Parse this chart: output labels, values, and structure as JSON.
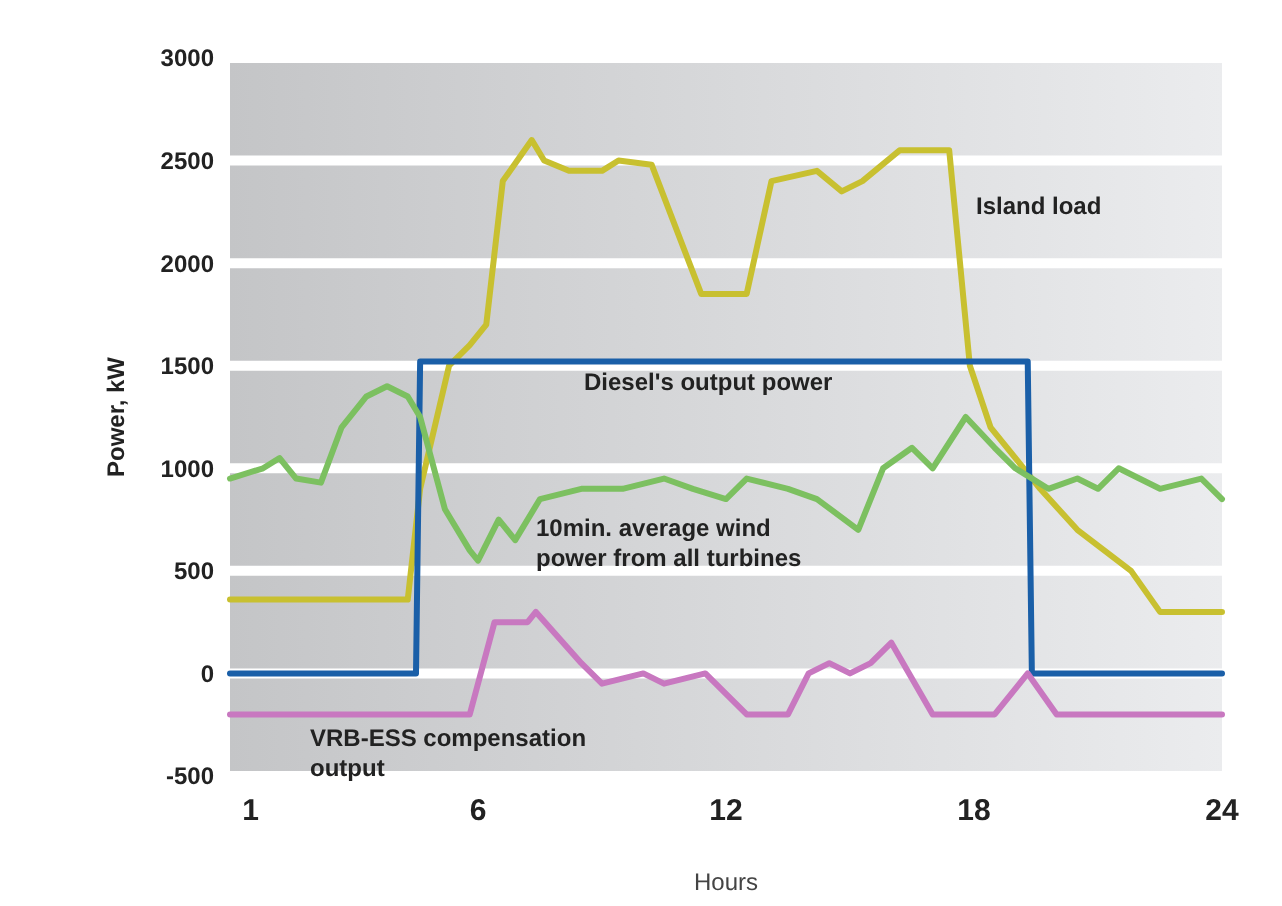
{
  "chart_data": {
    "type": "line",
    "xlabel": "Hours",
    "ylabel": "Power, kW",
    "xlim": [
      0,
      24
    ],
    "xticks": [
      {
        "value": 0.5,
        "label": "1"
      },
      6,
      12,
      18,
      24
    ],
    "ylim": [
      -500,
      3000
    ],
    "yticks": [
      {
        "value": -500,
        "label": "-500"
      },
      0,
      500,
      1000,
      1500,
      2000,
      2500,
      3000
    ],
    "grid": "y",
    "series": [
      {
        "name": "Island load",
        "color": "#c8c030",
        "x": [
          0,
          4.3,
          4.6,
          5.3,
          5.8,
          6.2,
          6.6,
          7.3,
          7.6,
          8.2,
          9,
          9.4,
          10.2,
          11.4,
          12.5,
          13.1,
          14.2,
          14.8,
          15.3,
          16.2,
          17.4,
          17.9,
          18.4,
          19.6,
          20.5,
          21.8,
          22.5,
          24
        ],
        "values": [
          360,
          360,
          900,
          1500,
          1600,
          1700,
          2400,
          2600,
          2500,
          2450,
          2450,
          2500,
          2480,
          1850,
          1850,
          2400,
          2450,
          2350,
          2400,
          2550,
          2550,
          1500,
          1200,
          900,
          700,
          500,
          300,
          300
        ]
      },
      {
        "name": "Diesel's output power",
        "color": "#1a5fa8",
        "x": [
          0,
          4.5,
          4.6,
          19.3,
          19.4,
          24
        ],
        "values": [
          0,
          0,
          1520,
          1520,
          0,
          0
        ]
      },
      {
        "name": "10min. average wind power from all turbines",
        "color": "#7cc060",
        "x": [
          0,
          0.8,
          1.2,
          1.6,
          2.2,
          2.7,
          3.3,
          3.8,
          4.3,
          4.6,
          5.2,
          5.8,
          6,
          6.5,
          6.9,
          7.5,
          8.5,
          9.5,
          10.5,
          11.2,
          12,
          12.5,
          13.5,
          14.2,
          15.2,
          15.8,
          16.5,
          17,
          17.8,
          18.5,
          19,
          19.8,
          20.5,
          21,
          21.5,
          22.5,
          23.5,
          24
        ],
        "values": [
          950,
          1000,
          1050,
          950,
          930,
          1200,
          1350,
          1400,
          1350,
          1250,
          800,
          600,
          550,
          750,
          650,
          850,
          900,
          900,
          950,
          900,
          850,
          950,
          900,
          850,
          700,
          1000,
          1100,
          1000,
          1250,
          1100,
          1000,
          900,
          950,
          900,
          1000,
          900,
          950,
          850
        ]
      },
      {
        "name": "VRB-ESS compensation output",
        "color": "#c878c0",
        "x": [
          0,
          5.8,
          6.4,
          7.2,
          7.4,
          8.5,
          9,
          10,
          10.5,
          11.5,
          12.5,
          13.5,
          14,
          14.5,
          15,
          15.5,
          16,
          17,
          18.5,
          19.3,
          20,
          24
        ],
        "values": [
          -200,
          -200,
          250,
          250,
          300,
          50,
          -50,
          0,
          -50,
          0,
          -200,
          -200,
          0,
          50,
          0,
          50,
          150,
          -200,
          -200,
          0,
          -200,
          -200
        ]
      }
    ]
  }
}
